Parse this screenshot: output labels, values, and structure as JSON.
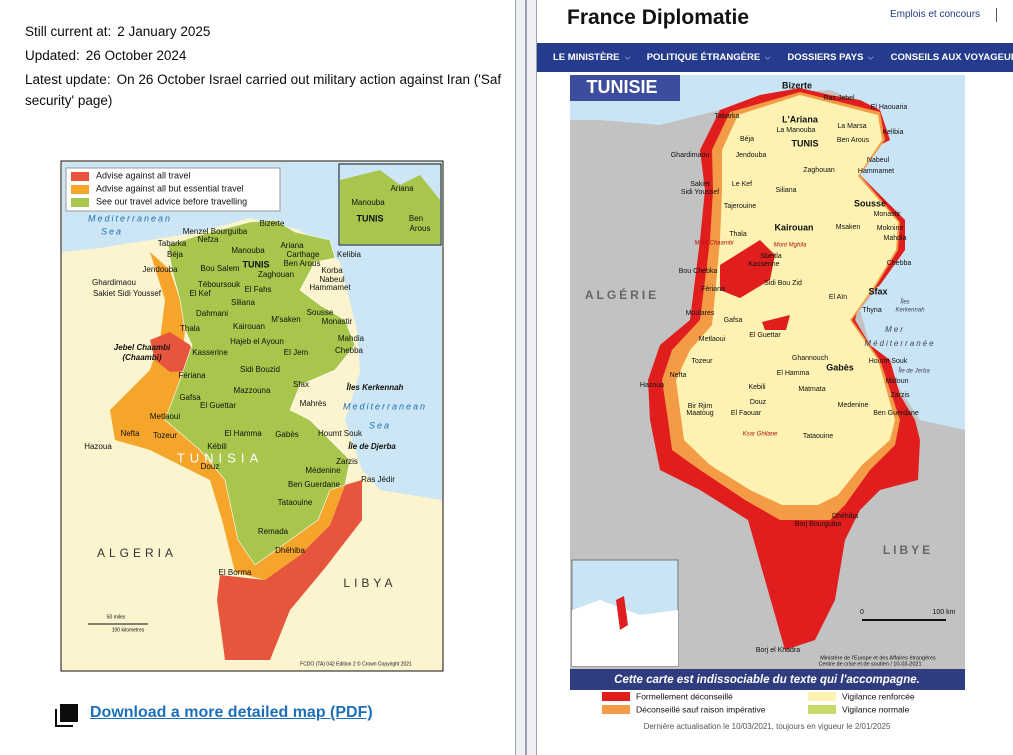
{
  "left_page": {
    "status": [
      {
        "label": "Still current at:",
        "value": "2 January 2025"
      },
      {
        "label": "Updated:",
        "value": "26 October 2024"
      },
      {
        "label": "Latest update:",
        "value": "On 26 October Israel carried out military action against Iran ('Saf"
      }
    ],
    "status_continued": "security' page)",
    "map": {
      "legend": [
        "Advise against all travel",
        "Advise against all but essential travel",
        "See our travel advice before travelling"
      ],
      "places": [
        "Mediterranean",
        "Sea",
        "Bizerte",
        "Menzel Bourguiba",
        "Nefza",
        "Tabarka",
        "Manouba",
        "Ariana",
        "Béja",
        "Carthage",
        "Kelibia",
        "TUNIS",
        "Ben Arous",
        "Jendouba",
        "Bou Salem",
        "Zaghouan",
        "Korba",
        "Téboursouk",
        "Nabeul",
        "Ghardimaou",
        "Hammamet",
        "Sakiet Sidi Youssef",
        "El Kef",
        "El Fahs",
        "Siliana",
        "Sousse",
        "Dahmani",
        "M'saken",
        "Monastir",
        "Kairouan",
        "Thala",
        "Hajeb el Ayoun",
        "Mahdia",
        "Jebel Chaambi",
        "(Chaambi)",
        "El Jem",
        "Chebba",
        "Kasserine",
        "Sidi Bouzid",
        "Fériana",
        "Mazzouna",
        "Sfax",
        "Îles Kerkennah",
        "Gafsa",
        "Mahrès",
        "El Guettar",
        "Mediterranean",
        "Metlaoui",
        "Sea",
        "Nefta",
        "Tozeur",
        "El Hamma",
        "Gabès",
        "Houmt Souk",
        "Île de Djerba",
        "Hazoua",
        "Kébili",
        "TUNISIA",
        "Douz",
        "Zarzis",
        "Médenine",
        "Ras Jédir",
        "Ben Guerdane",
        "Tataouine",
        "Remada",
        "Dhéhiba",
        "El Borma",
        "ALGERIA",
        "LIBYA"
      ],
      "inset_places": [
        "Ariana",
        "Manouba",
        "TUNIS",
        "Ben",
        "Arous"
      ],
      "scale": [
        "50 miles",
        "100 kilometres"
      ],
      "credit": "FCDO (TA) 042 Edition 2 © Crown Copyright 2021"
    },
    "download_link": "Download a more detailed map (PDF)"
  },
  "right_page": {
    "header": {
      "title": "France Diplomatie",
      "top_link": "Emplois et concours"
    },
    "nav": [
      "LE MINISTÈRE",
      "POLITIQUE ÉTRANGÈRE",
      "DOSSIERS PAYS",
      "CONSEILS AUX VOYAGEURS"
    ],
    "map": {
      "title": "TUNISIE",
      "places": [
        "Bizerte",
        "Ras Jebel",
        "El Haouaria",
        "Tabarka",
        "L'Ariana",
        "La Marsa",
        "La Manouba",
        "Kelibia",
        "Béja",
        "Ben Arous",
        "TUNIS",
        "Ghardimaou",
        "Jendouba",
        "Nabeul",
        "Zaghouan",
        "Hammamet",
        "Le Kef",
        "Sakiet",
        "Sidi Youssef",
        "Siliana",
        "Sousse",
        "Tajerouine",
        "Monastir",
        "Msaken",
        "Kairouan",
        "Moknine",
        "Thala",
        "Mahdia",
        "Mont Chaambi",
        "Mont Mghila",
        "Sbeitla",
        "Chebba",
        "Kasserine",
        "Bou Chebka",
        "Sidi Bou Zid",
        "Fériana",
        "ALGÉRIE",
        "El Aïn",
        "Sfax",
        "Îles",
        "Kerkennah",
        "Thyna",
        "Moulares",
        "Gafsa",
        "Mer",
        "El Guettar",
        "Metlaoui",
        "Méditerranée",
        "Ghannouch",
        "Tozeur",
        "Houmt Souk",
        "Gabès",
        "Île de Jerba",
        "El Hamma",
        "Nefta",
        "Midoun",
        "Hazoua",
        "Kebili",
        "Matmata",
        "Zarzis",
        "Douz",
        "Medenine",
        "Bir Rjim",
        "Maatoug",
        "El Faouar",
        "Ben Guerdane",
        "Ksar Ghilane",
        "Tataouine",
        "Dhéhiba",
        "Borj Bourguiba",
        "LIBYE",
        "Borj el Khadra"
      ],
      "scale": [
        "0",
        "100 km"
      ],
      "credit": [
        "Ministère de l'Europe et des Affaires étrangères",
        "Centre de crise et de soutien / 10-03-2021"
      ],
      "notice": "Cette carte est indissociable du texte qui l'accompagne."
    },
    "legend": [
      "Formellement déconseillé",
      "Vigilance renforcée",
      "Déconseillé sauf raison impérative",
      "Vigilance normale"
    ],
    "footer": "Dernière actualisation le 10/03/2021, toujours en vigueur le 2/01/2025"
  }
}
